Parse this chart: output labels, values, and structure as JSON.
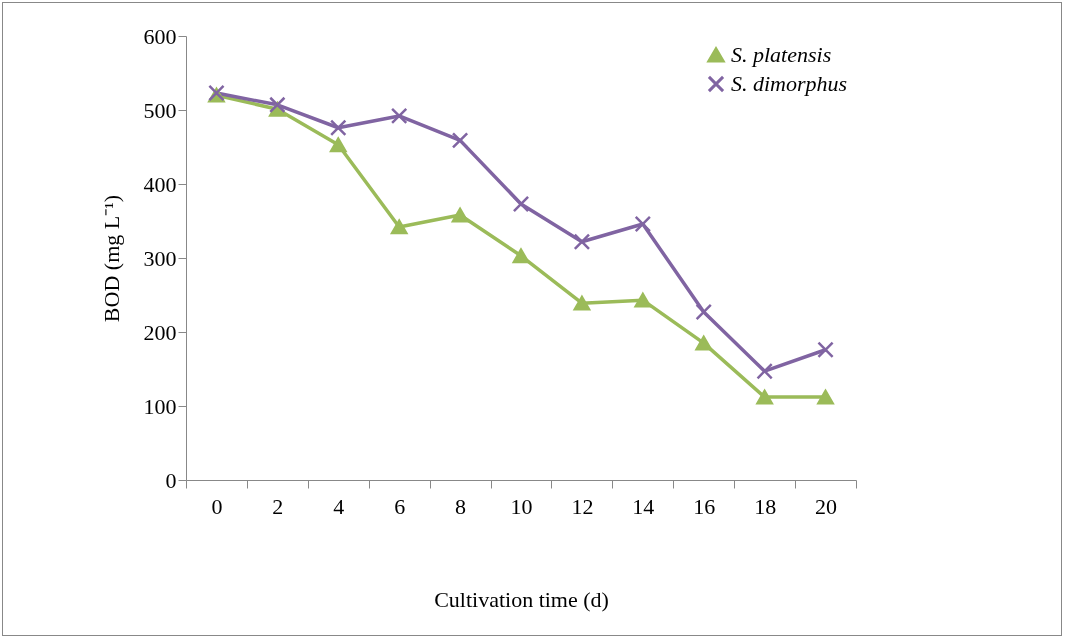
{
  "chart_data": {
    "type": "line",
    "xlabel": "Cultivation time (d)",
    "ylabel": "BOD (mg L⁻¹)",
    "categories": [
      "0",
      "2",
      "4",
      "6",
      "8",
      "10",
      "12",
      "14",
      "16",
      "18",
      "20"
    ],
    "ylim": [
      0,
      600
    ],
    "yticks": [
      0,
      100,
      200,
      300,
      400,
      500,
      600
    ],
    "grid": false,
    "legend": "top right",
    "series": [
      {
        "name": "S. platensis",
        "color": "#9bbb59",
        "marker": "triangle",
        "values": [
          520,
          501,
          453,
          342,
          358,
          303,
          239,
          243,
          185,
          112,
          112
        ]
      },
      {
        "name": "S. dimorphus",
        "color": "#8064a2",
        "marker": "cross",
        "values": [
          523,
          507,
          476,
          492,
          459,
          373,
          322,
          346,
          227,
          147,
          176
        ]
      }
    ]
  }
}
